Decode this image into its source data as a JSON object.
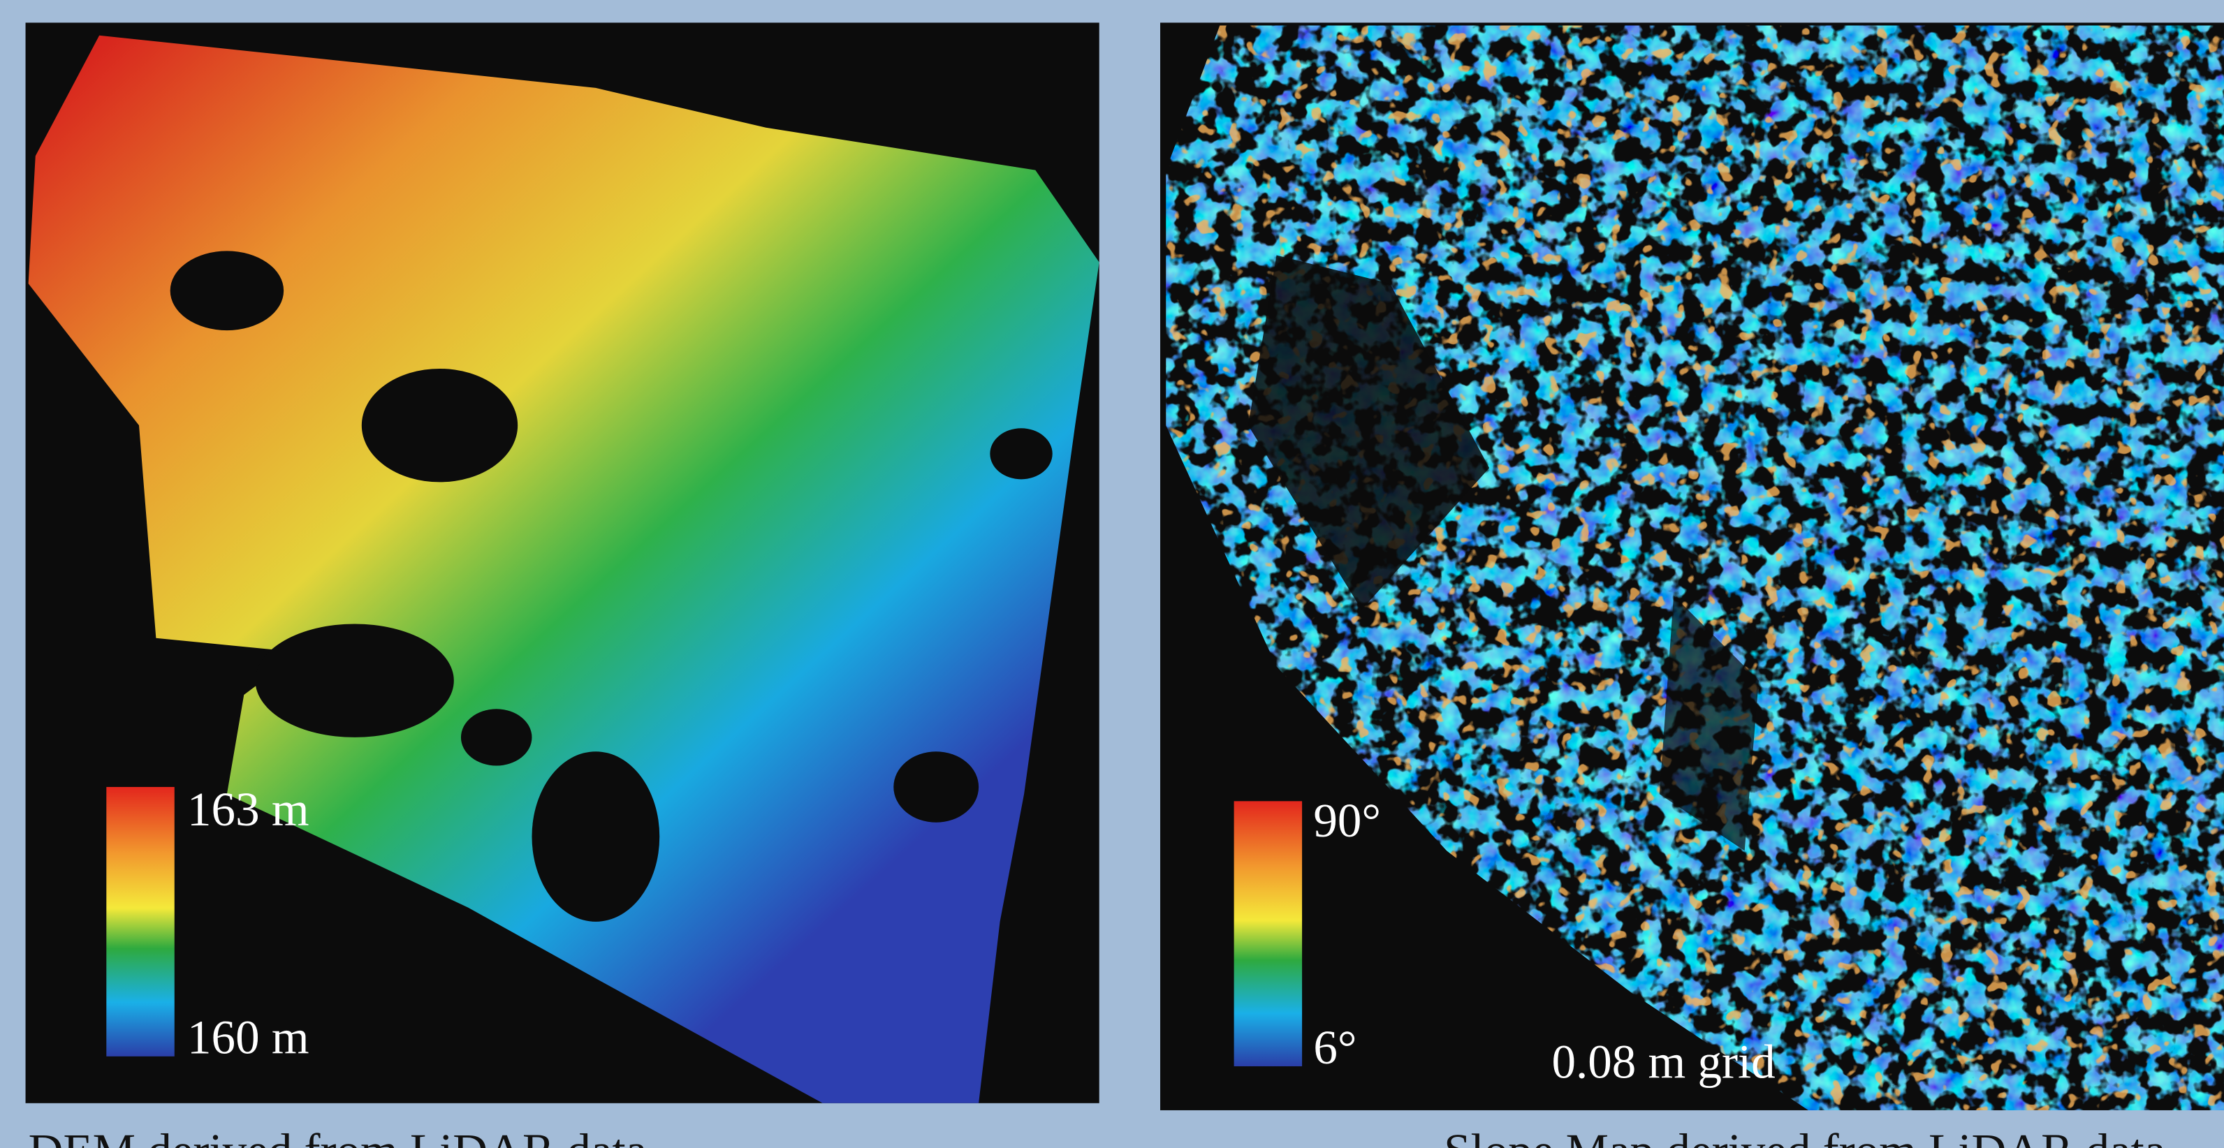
{
  "panels": [
    {
      "legend": {
        "max": "163 m",
        "min": "160 m"
      },
      "caption": "DEM derived from LiDAR data"
    },
    {
      "legend": {
        "max": "90°",
        "min": "6°"
      },
      "scale_note": "0.08 m grid",
      "caption": "Slope Map derived from LiDAR data"
    }
  ]
}
